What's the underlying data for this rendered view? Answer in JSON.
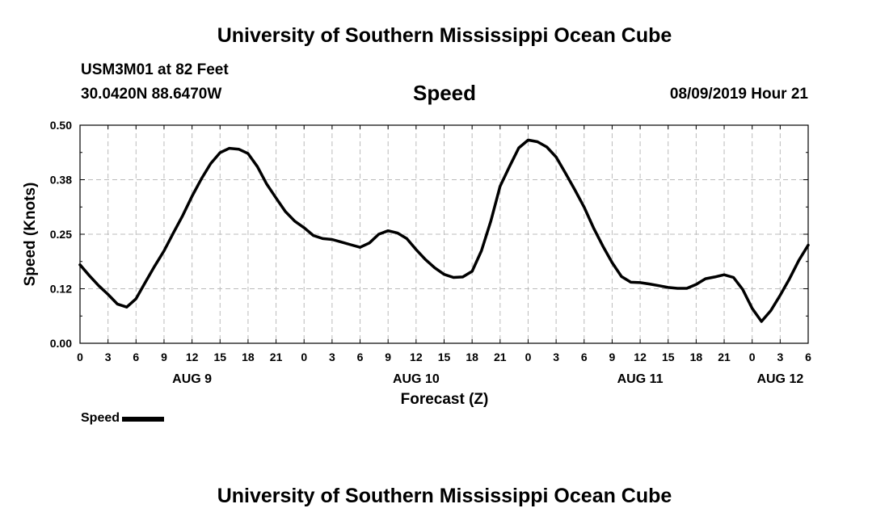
{
  "header": {
    "title": "University of Southern Mississippi Ocean Cube",
    "station": "USM3M01 at 82 Feet",
    "coords": "30.0420N 88.6470W",
    "variable": "Speed",
    "datetime": "08/09/2019 Hour 21"
  },
  "footer": {
    "title": "University of Southern Mississippi Ocean Cube"
  },
  "legend": {
    "label": "Speed"
  },
  "chart_data": {
    "type": "line",
    "title": "Speed",
    "xlabel": "Forecast (Z)",
    "ylabel": "Speed (Knots)",
    "xlim": [
      0,
      78
    ],
    "ylim": [
      0,
      0.5
    ],
    "yticks": [
      "0.00",
      "0.12",
      "0.25",
      "0.38",
      "0.50"
    ],
    "ytick_values": [
      0,
      0.125,
      0.25,
      0.375,
      0.5
    ],
    "xticks": [
      "0",
      "3",
      "6",
      "9",
      "12",
      "15",
      "18",
      "21",
      "0",
      "3",
      "6",
      "9",
      "12",
      "15",
      "18",
      "21",
      "0",
      "3",
      "6",
      "9",
      "12",
      "15",
      "18",
      "21",
      "0",
      "3",
      "6"
    ],
    "xtick_values": [
      0,
      3,
      6,
      9,
      12,
      15,
      18,
      21,
      24,
      27,
      30,
      33,
      36,
      39,
      42,
      45,
      48,
      51,
      54,
      57,
      60,
      63,
      66,
      69,
      72,
      75,
      78
    ],
    "date_labels": [
      {
        "label": "AUG 9",
        "hour": 12
      },
      {
        "label": "AUG 10",
        "hour": 36
      },
      {
        "label": "AUG 11",
        "hour": 60
      },
      {
        "label": "AUG 12",
        "hour": 75
      }
    ],
    "grid": true,
    "legend_position": "bottom-left",
    "line_color": "#000000",
    "series": [
      {
        "name": "Speed",
        "x": [
          0,
          1,
          2,
          3,
          4,
          5,
          6,
          7,
          8,
          9,
          10,
          11,
          12,
          13,
          14,
          15,
          16,
          17,
          18,
          19,
          20,
          21,
          22,
          23,
          24,
          25,
          26,
          27,
          28,
          29,
          30,
          31,
          32,
          33,
          34,
          35,
          36,
          37,
          38,
          39,
          40,
          41,
          42,
          43,
          44,
          45,
          46,
          47,
          48,
          49,
          50,
          51,
          52,
          53,
          54,
          55,
          56,
          57,
          58,
          59,
          60,
          61,
          62,
          63,
          64,
          65,
          66,
          67,
          68,
          69,
          70,
          71,
          72,
          73,
          74,
          75,
          76,
          77,
          78
        ],
        "y": [
          0.18,
          0.155,
          0.132,
          0.112,
          0.09,
          0.083,
          0.102,
          0.14,
          0.177,
          0.212,
          0.253,
          0.293,
          0.337,
          0.377,
          0.412,
          0.437,
          0.447,
          0.445,
          0.435,
          0.405,
          0.365,
          0.333,
          0.302,
          0.28,
          0.265,
          0.247,
          0.24,
          0.238,
          0.232,
          0.226,
          0.22,
          0.23,
          0.25,
          0.258,
          0.253,
          0.24,
          0.215,
          0.192,
          0.173,
          0.158,
          0.151,
          0.152,
          0.165,
          0.212,
          0.28,
          0.36,
          0.405,
          0.448,
          0.466,
          0.462,
          0.45,
          0.427,
          0.39,
          0.352,
          0.312,
          0.265,
          0.223,
          0.185,
          0.153,
          0.14,
          0.139,
          0.136,
          0.132,
          0.128,
          0.126,
          0.126,
          0.135,
          0.148,
          0.152,
          0.157,
          0.151,
          0.123,
          0.08,
          0.05,
          0.075,
          0.11,
          0.148,
          0.19,
          0.225
        ]
      }
    ]
  }
}
